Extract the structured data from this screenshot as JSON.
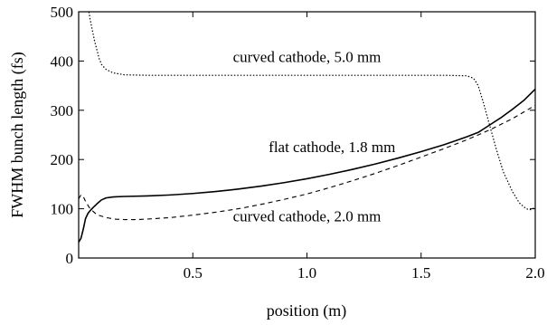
{
  "chart_data": {
    "type": "line",
    "xlabel": "position (m)",
    "ylabel": "FWHM bunch length (fs)",
    "xlim": [
      0,
      2.0
    ],
    "ylim": [
      0,
      500
    ],
    "x_ticks": [
      0.5,
      1.0,
      1.5,
      2.0
    ],
    "x_tick_labels": [
      "0.5",
      "1.0",
      "1.5",
      "2.0"
    ],
    "y_ticks": [
      0,
      100,
      200,
      300,
      400,
      500
    ],
    "y_tick_labels": [
      "0",
      "100",
      "200",
      "300",
      "400",
      "500"
    ],
    "grid": false,
    "legend": "none",
    "series": [
      {
        "line_style": "solid",
        "color": "#000000",
        "points": [
          [
            0.0,
            32
          ],
          [
            0.01,
            40
          ],
          [
            0.02,
            58
          ],
          [
            0.03,
            80
          ],
          [
            0.04,
            90
          ],
          [
            0.05,
            96
          ],
          [
            0.06,
            101
          ],
          [
            0.08,
            110
          ],
          [
            0.1,
            118
          ],
          [
            0.12,
            122
          ],
          [
            0.15,
            124
          ],
          [
            0.2,
            125
          ],
          [
            0.3,
            126
          ],
          [
            0.4,
            128
          ],
          [
            0.5,
            131
          ],
          [
            0.6,
            135
          ],
          [
            0.7,
            140
          ],
          [
            0.8,
            146
          ],
          [
            0.9,
            153
          ],
          [
            1.0,
            161
          ],
          [
            1.1,
            170
          ],
          [
            1.2,
            180
          ],
          [
            1.3,
            191
          ],
          [
            1.4,
            203
          ],
          [
            1.5,
            216
          ],
          [
            1.6,
            230
          ],
          [
            1.7,
            246
          ],
          [
            1.75,
            255
          ],
          [
            1.8,
            270
          ],
          [
            1.85,
            285
          ],
          [
            1.9,
            302
          ],
          [
            1.95,
            320
          ],
          [
            2.0,
            343
          ]
        ]
      },
      {
        "line_style": "dashed",
        "color": "#000000",
        "points": [
          [
            0.0,
            120
          ],
          [
            0.01,
            128
          ],
          [
            0.02,
            125
          ],
          [
            0.03,
            115
          ],
          [
            0.05,
            100
          ],
          [
            0.08,
            88
          ],
          [
            0.12,
            82
          ],
          [
            0.16,
            79
          ],
          [
            0.2,
            78
          ],
          [
            0.25,
            78
          ],
          [
            0.3,
            79
          ],
          [
            0.4,
            82
          ],
          [
            0.5,
            87
          ],
          [
            0.6,
            93
          ],
          [
            0.7,
            100
          ],
          [
            0.8,
            109
          ],
          [
            0.9,
            119
          ],
          [
            1.0,
            130
          ],
          [
            1.1,
            143
          ],
          [
            1.2,
            157
          ],
          [
            1.3,
            172
          ],
          [
            1.4,
            188
          ],
          [
            1.5,
            205
          ],
          [
            1.6,
            222
          ],
          [
            1.7,
            240
          ],
          [
            1.8,
            260
          ],
          [
            1.9,
            283
          ],
          [
            2.0,
            310
          ]
        ]
      },
      {
        "line_style": "dotted",
        "color": "#000000",
        "points": [
          [
            0.045,
            500
          ],
          [
            0.05,
            485
          ],
          [
            0.07,
            440
          ],
          [
            0.09,
            405
          ],
          [
            0.1,
            393
          ],
          [
            0.12,
            383
          ],
          [
            0.15,
            376
          ],
          [
            0.2,
            372
          ],
          [
            0.3,
            371
          ],
          [
            0.5,
            371
          ],
          [
            0.8,
            371
          ],
          [
            1.0,
            371
          ],
          [
            1.3,
            371
          ],
          [
            1.6,
            371
          ],
          [
            1.7,
            370
          ],
          [
            1.73,
            365
          ],
          [
            1.75,
            350
          ],
          [
            1.77,
            320
          ],
          [
            1.8,
            270
          ],
          [
            1.83,
            220
          ],
          [
            1.86,
            175
          ],
          [
            1.9,
            135
          ],
          [
            1.93,
            112
          ],
          [
            1.96,
            100
          ],
          [
            1.98,
            98
          ],
          [
            2.0,
            103
          ]
        ]
      }
    ],
    "annotations": [
      {
        "text": "curved cathode, 5.0 mm",
        "x": 1.0,
        "y": 398
      },
      {
        "text": "flat cathode, 1.8 mm",
        "x": 1.11,
        "y": 215
      },
      {
        "text": "curved cathode, 2.0 mm",
        "x": 1.0,
        "y": 74
      }
    ]
  }
}
